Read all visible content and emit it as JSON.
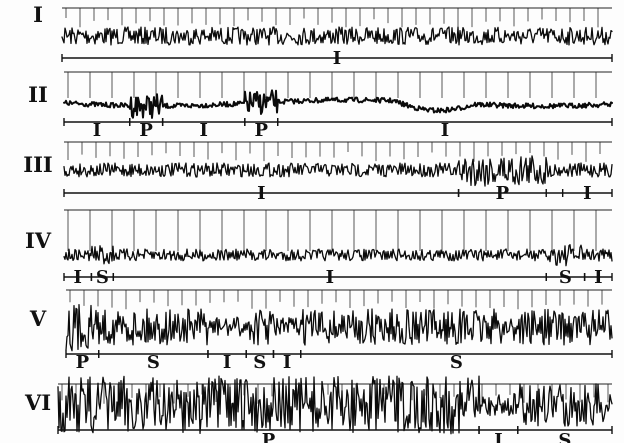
{
  "rows": [
    {
      "label": "I",
      "segments": [
        {
          "label": "I",
          "start": 0.0,
          "end": 1.0
        }
      ]
    },
    {
      "label": "II",
      "segments": [
        {
          "label": "I",
          "start": 0.0,
          "end": 0.12
        },
        {
          "label": "P",
          "start": 0.12,
          "end": 0.18
        },
        {
          "label": "I",
          "start": 0.18,
          "end": 0.33
        },
        {
          "label": "P",
          "start": 0.33,
          "end": 0.39
        },
        {
          "label": "I",
          "start": 0.39,
          "end": 1.0
        }
      ]
    },
    {
      "label": "III",
      "segments": [
        {
          "label": "I",
          "start": 0.0,
          "end": 0.72
        },
        {
          "label": "P",
          "start": 0.72,
          "end": 0.88
        },
        {
          "label": "I",
          "start": 0.91,
          "end": 1.0
        }
      ]
    },
    {
      "label": "IV",
      "segments": [
        {
          "label": "I",
          "start": 0.0,
          "end": 0.05
        },
        {
          "label": "S",
          "start": 0.05,
          "end": 0.09
        },
        {
          "label": "I",
          "start": 0.09,
          "end": 0.88
        },
        {
          "label": "S",
          "start": 0.88,
          "end": 0.95
        },
        {
          "label": "I",
          "start": 0.95,
          "end": 1.0
        }
      ]
    },
    {
      "label": "V",
      "segments": [
        {
          "label": "P",
          "start": 0.0,
          "end": 0.06
        },
        {
          "label": "S",
          "start": 0.06,
          "end": 0.26
        },
        {
          "label": "I",
          "start": 0.26,
          "end": 0.33
        },
        {
          "label": "S",
          "start": 0.33,
          "end": 0.38
        },
        {
          "label": "I",
          "start": 0.38,
          "end": 0.43
        },
        {
          "label": "S",
          "start": 0.43,
          "end": 1.0
        }
      ]
    },
    {
      "label": "VI",
      "segments": [
        {
          "label": "P",
          "start": 0.0,
          "end": 0.76
        },
        {
          "label": "I",
          "start": 0.76,
          "end": 0.83
        },
        {
          "label": "S",
          "start": 0.83,
          "end": 1.0
        }
      ]
    }
  ]
}
